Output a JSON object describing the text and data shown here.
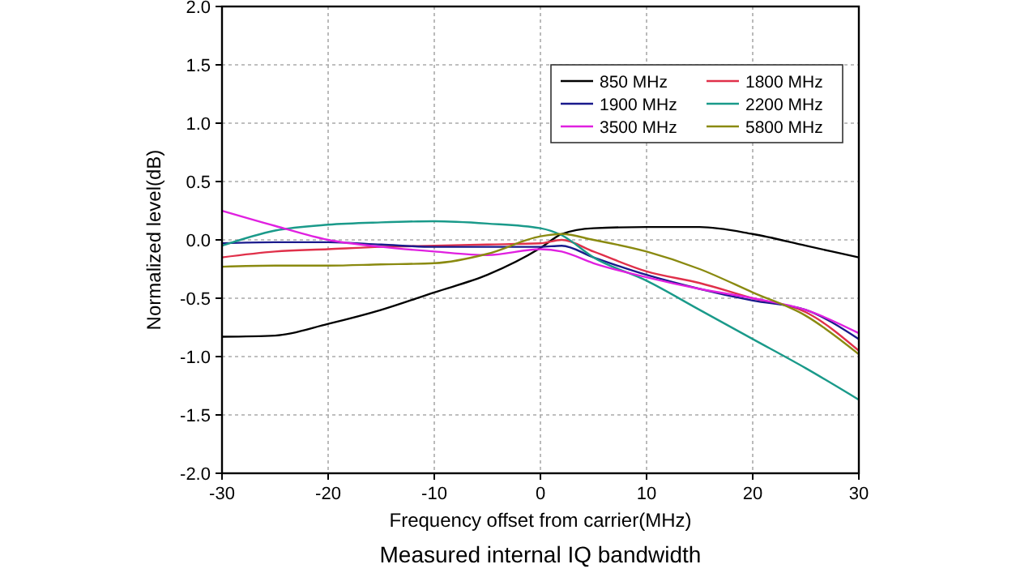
{
  "chart_data": {
    "type": "line",
    "title": "Measured internal IQ bandwidth",
    "xlabel": "Frequency offset from carrier(MHz)",
    "ylabel": "Normalized level(dB)",
    "x": [
      -30,
      -25,
      -20,
      -15,
      -10,
      -5,
      0,
      2,
      5,
      10,
      15,
      20,
      25,
      30
    ],
    "series": [
      {
        "name": "850 MHz",
        "color": "#000000",
        "values": [
          -0.83,
          -0.82,
          -0.72,
          -0.6,
          -0.45,
          -0.3,
          -0.07,
          0.05,
          0.1,
          0.11,
          0.11,
          0.05,
          -0.05,
          -0.15
        ]
      },
      {
        "name": "1800 MHz",
        "color": "#e0304a",
        "values": [
          -0.15,
          -0.1,
          -0.08,
          -0.06,
          -0.05,
          -0.04,
          -0.03,
          0.0,
          -0.1,
          -0.27,
          -0.37,
          -0.5,
          -0.62,
          -0.95
        ]
      },
      {
        "name": "1900 MHz",
        "color": "#1a1a8c",
        "values": [
          -0.03,
          -0.02,
          -0.02,
          -0.04,
          -0.06,
          -0.06,
          -0.06,
          -0.05,
          -0.15,
          -0.3,
          -0.42,
          -0.52,
          -0.6,
          -0.85
        ]
      },
      {
        "name": "2200 MHz",
        "color": "#1a9a8a",
        "values": [
          -0.05,
          0.08,
          0.13,
          0.15,
          0.16,
          0.14,
          0.1,
          0.04,
          -0.15,
          -0.35,
          -0.6,
          -0.85,
          -1.1,
          -1.37
        ]
      },
      {
        "name": "3500 MHz",
        "color": "#e020e0",
        "values": [
          0.25,
          0.12,
          0.0,
          -0.06,
          -0.1,
          -0.13,
          -0.08,
          -0.1,
          -0.2,
          -0.32,
          -0.42,
          -0.5,
          -0.6,
          -0.8
        ]
      },
      {
        "name": "5800 MHz",
        "color": "#8a8a10",
        "values": [
          -0.23,
          -0.22,
          -0.22,
          -0.21,
          -0.2,
          -0.12,
          0.03,
          0.05,
          0.0,
          -0.1,
          -0.25,
          -0.45,
          -0.65,
          -0.98
        ]
      }
    ],
    "xlim": [
      -30,
      30
    ],
    "xticks": [
      -30,
      -20,
      -10,
      0,
      10,
      20,
      30
    ],
    "ylim": [
      -2,
      2
    ],
    "yticks": [
      {
        "value": -2,
        "label": "-2.0"
      },
      {
        "value": -1.5,
        "label": "-1.5"
      },
      {
        "value": -1,
        "label": "-1.0"
      },
      {
        "value": -0.5,
        "label": "-0.5"
      },
      {
        "value": 0,
        "label": "0.0"
      },
      {
        "value": 0.5,
        "label": "0.5"
      },
      {
        "value": 1,
        "label": "1.0"
      },
      {
        "value": 1.5,
        "label": "1.5"
      },
      {
        "value": 2,
        "label": "2.0"
      }
    ],
    "grid": true,
    "legend": "top right",
    "marker": "none",
    "line_style": "solid"
  }
}
